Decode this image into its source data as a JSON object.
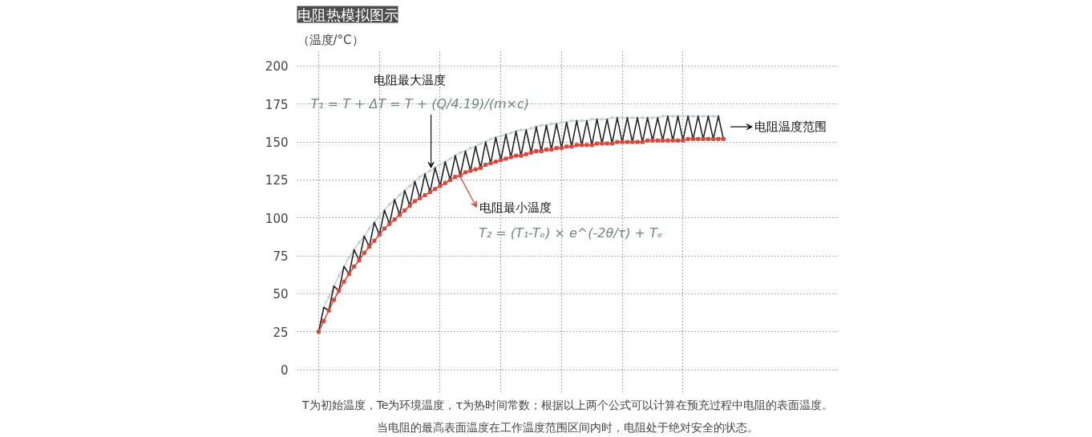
{
  "chart_data": {
    "type": "line",
    "title": "电阻热模拟图示",
    "ylabel": "（温度/°C）",
    "categories": [
      null,
      null,
      null,
      null,
      null,
      null,
      null,
      null,
      null,
      null,
      null,
      null,
      null,
      null,
      null,
      null,
      null,
      null,
      null,
      null,
      null,
      null,
      null,
      null,
      null,
      null,
      null,
      null,
      null,
      null,
      null,
      null,
      null,
      null,
      null,
      null,
      null,
      null,
      null,
      null,
      null,
      null,
      null,
      null,
      null,
      null,
      null,
      null,
      null,
      null,
      null,
      null,
      null,
      null,
      null,
      null,
      null,
      null,
      null,
      null,
      null,
      null,
      null,
      null,
      null,
      null,
      null,
      null,
      null,
      null,
      null,
      null,
      null,
      null,
      null,
      null,
      null,
      null,
      null,
      null,
      null
    ],
    "ylim": [
      -15,
      210
    ],
    "yticks": [
      0,
      25,
      50,
      75,
      100,
      125,
      150,
      175,
      200
    ],
    "grid": true,
    "series": [
      {
        "color": "#c5d3d3",
        "marker": "circle",
        "values": [
          null,
          41,
          48,
          55,
          62,
          68,
          74,
          79,
          84,
          88,
          93,
          97,
          101,
          105,
          109,
          112,
          115,
          118,
          121,
          124,
          127,
          129,
          131,
          133,
          135,
          137,
          139,
          141,
          143,
          144,
          146,
          147,
          149,
          150,
          152,
          153,
          154,
          155,
          156,
          157,
          158,
          158,
          159,
          160,
          161,
          161,
          162,
          162,
          163,
          163,
          164,
          164,
          164,
          164,
          165,
          165,
          165,
          165,
          166,
          166,
          166,
          166,
          166,
          166,
          166,
          166,
          166,
          166,
          167,
          167,
          167,
          167,
          167,
          167,
          167,
          167,
          167,
          167,
          167,
          167,
          null
        ]
      },
      {
        "color": "#222222",
        "values": [
          25,
          41,
          39,
          55,
          52,
          68,
          63,
          79,
          72,
          88,
          81,
          97,
          89,
          105,
          96,
          112,
          102,
          118,
          108,
          124,
          113,
          129,
          117,
          133,
          121,
          137,
          125,
          141,
          128,
          144,
          131,
          147,
          133,
          150,
          136,
          153,
          138,
          155,
          140,
          157,
          141,
          158,
          143,
          160,
          144,
          161,
          145,
          162,
          146,
          163,
          147,
          164,
          148,
          164,
          148,
          165,
          149,
          165,
          149,
          166,
          150,
          166,
          150,
          166,
          150,
          166,
          151,
          166,
          151,
          167,
          151,
          167,
          151,
          167,
          152,
          167,
          152,
          167,
          152,
          167,
          152
        ]
      },
      {
        "color": "#d9473a",
        "marker": "square",
        "values": [
          25,
          32,
          39,
          46,
          52,
          58,
          63,
          68,
          72,
          77,
          81,
          85,
          89,
          93,
          96,
          99,
          102,
          105,
          108,
          111,
          113,
          115,
          117,
          119,
          121,
          123,
          125,
          127,
          128,
          130,
          131,
          132,
          133,
          135,
          136,
          137,
          138,
          139,
          140,
          141,
          141,
          142,
          143,
          144,
          144,
          145,
          145,
          146,
          146,
          147,
          147,
          148,
          148,
          148,
          148,
          149,
          149,
          149,
          149,
          150,
          150,
          150,
          150,
          150,
          150,
          151,
          151,
          151,
          151,
          151,
          151,
          151,
          151,
          152,
          152,
          152,
          152,
          152,
          152,
          152,
          152
        ]
      }
    ],
    "annotations": [
      "电阻最大温度",
      "T₁ = T + ΔT = T + (Q/4.19)/(m×c)",
      "电阻最小温度",
      "T₂ = (T₁-Tₑ) × e^(-2θ/τ) + Tₑ",
      "电阻温度范围",
      "T为初始温度，Te为环境温度，τ为热时间常数；根据以上两个公式可以计算在预充过程中电阻的表面温度。",
      "当电阻的最高表面温度在工作温度范围区间内时，电阻处于绝对安全的状态。"
    ]
  }
}
